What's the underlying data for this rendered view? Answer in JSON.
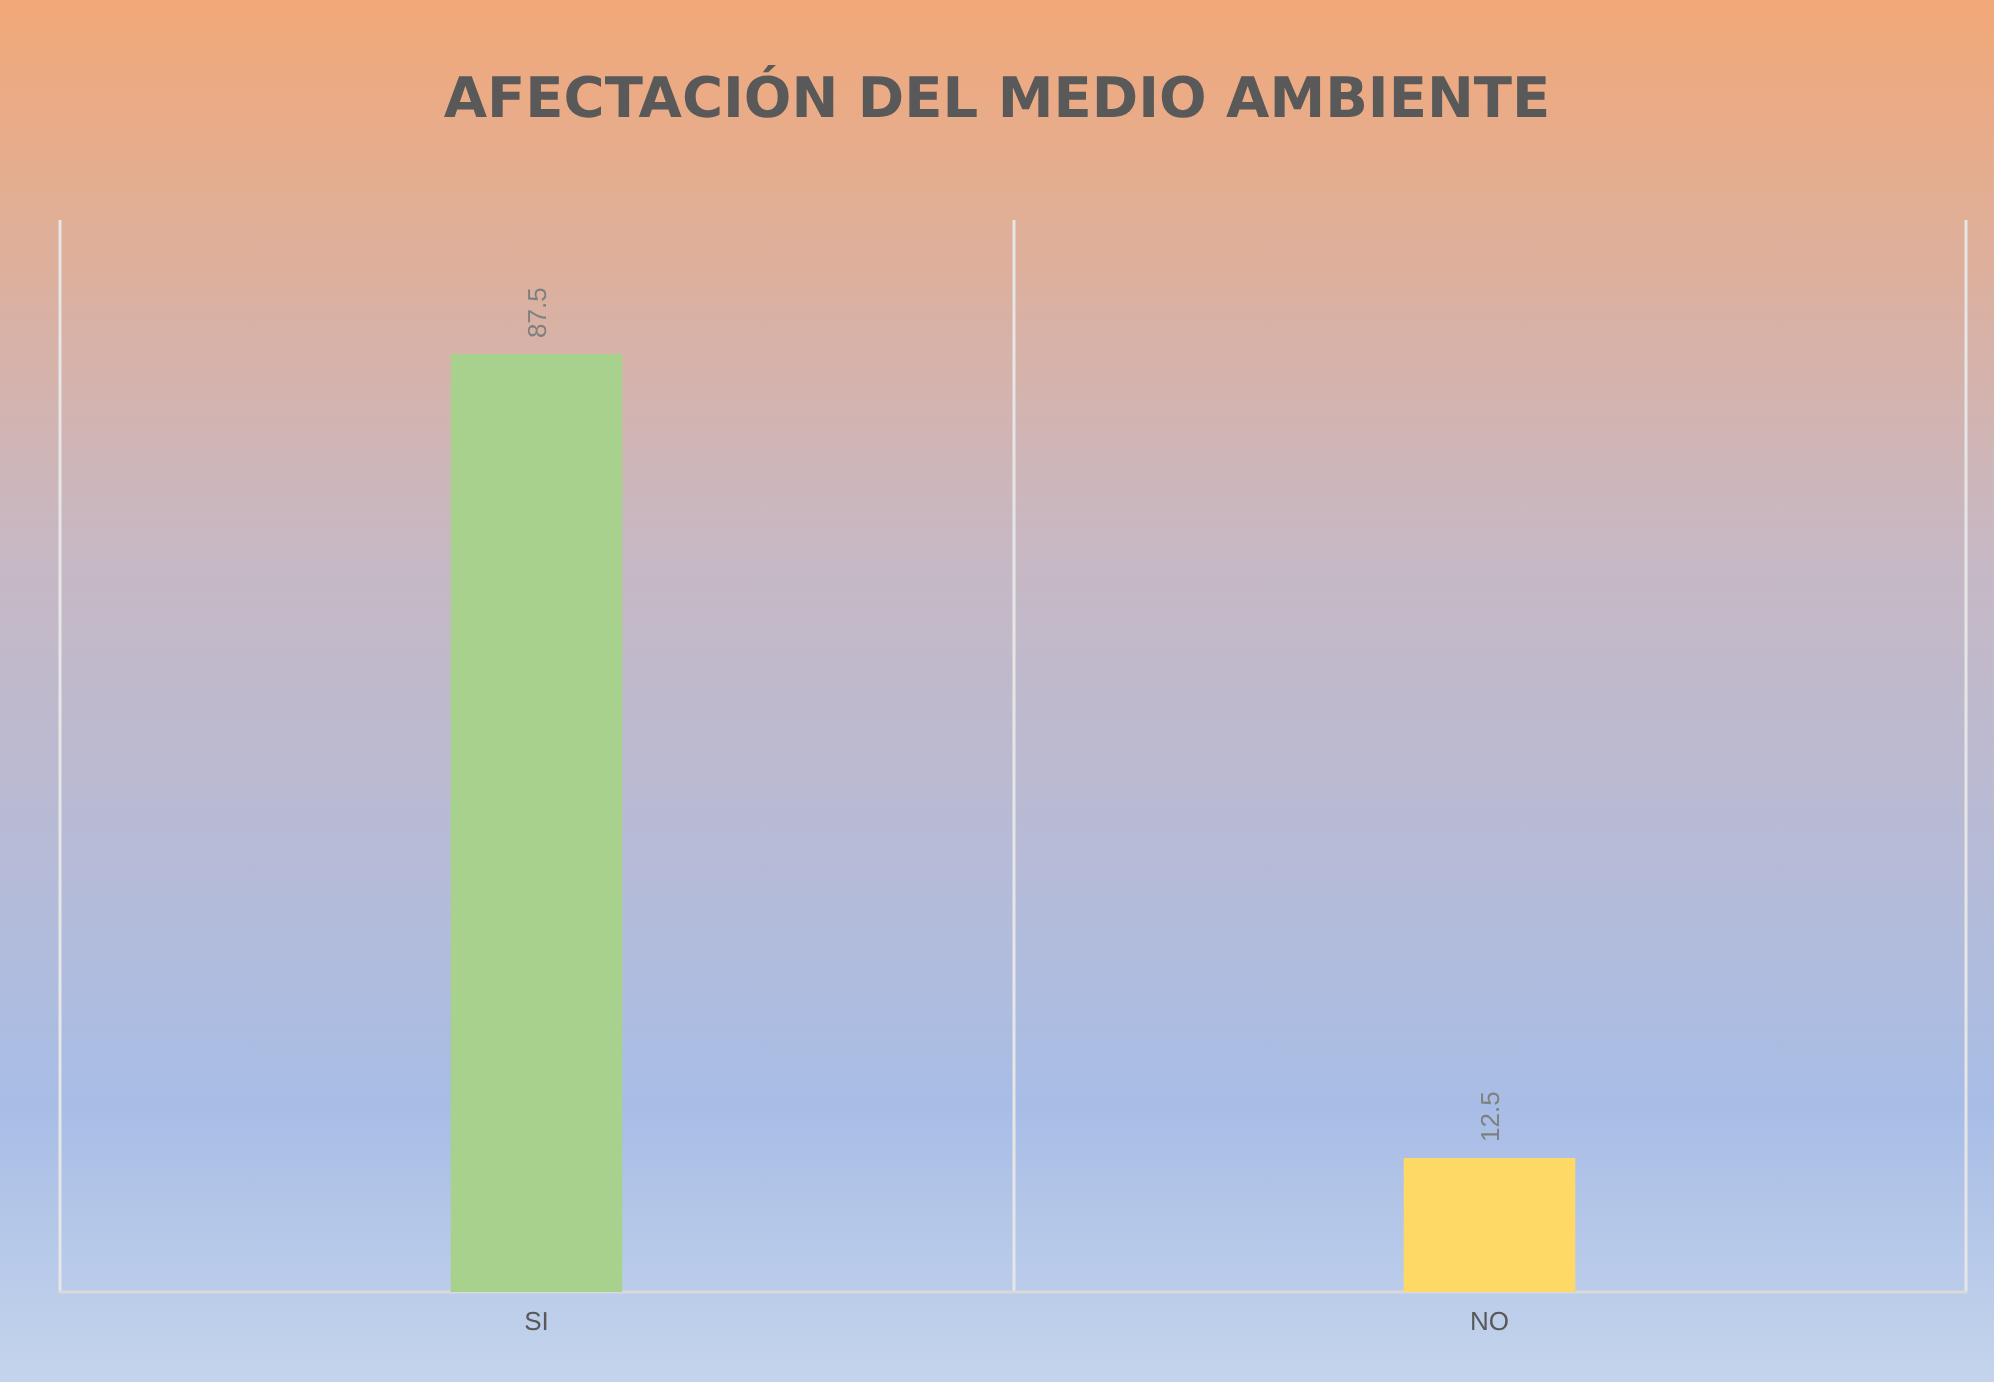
{
  "chart_data": {
    "type": "bar",
    "title": "AFECTACIÓN DEL MEDIO AMBIENTE",
    "categories": [
      "SI",
      "NO"
    ],
    "values": [
      87.5,
      12.5
    ],
    "colors": [
      "#a9d18e",
      "#ffd966"
    ],
    "data_labels": true,
    "grid": "x"
  }
}
